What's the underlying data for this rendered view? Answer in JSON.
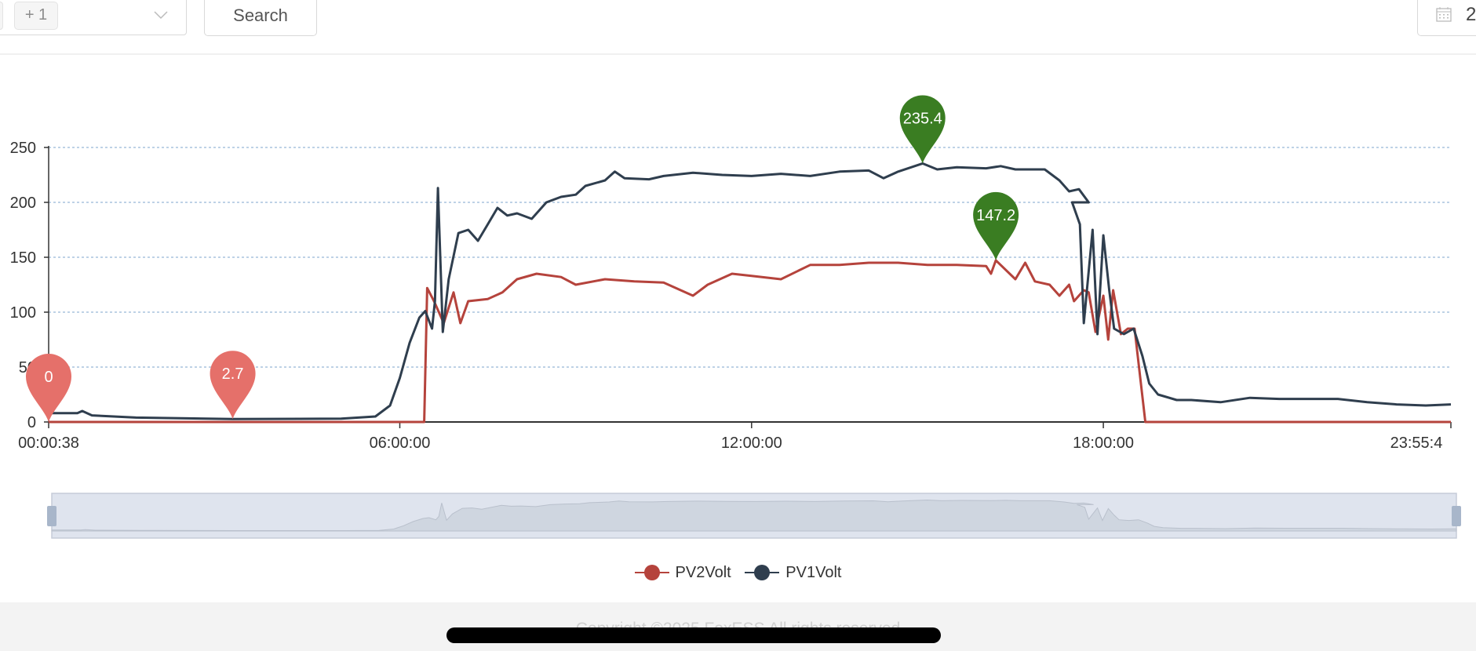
{
  "toolbar": {
    "tag_label": "+ 1",
    "search_label": "Search",
    "date_value": "2",
    "calendar_icon": "calendar-icon",
    "chevron_icon": "chevron-down-icon"
  },
  "chart_data": {
    "type": "line",
    "xlabel": "",
    "ylabel": "",
    "ylim": [
      0,
      250
    ],
    "yticks": [
      "0",
      "50",
      "100",
      "150",
      "200",
      "250"
    ],
    "xticks": [
      "00:00:38",
      "06:00:00",
      "12:00:00",
      "18:00:00",
      "23:55:4"
    ],
    "xrange": [
      "00:00:38",
      "23:55:40"
    ],
    "grid": true,
    "legend_position": "bottom",
    "colors": {
      "PV2Volt": "#b5433c",
      "PV1Volt": "#2f3e4e",
      "min_marker": "#e5706a",
      "max_marker": "#3a7d22",
      "grid": "#a9c4dd"
    },
    "series": [
      {
        "name": "PV2Volt",
        "color": "#b5433c",
        "x": [
          "00:00:38",
          "06:25",
          "06:28",
          "06:35",
          "06:45",
          "06:55",
          "07:02",
          "07:10",
          "07:30",
          "07:45",
          "08:00",
          "08:20",
          "08:45",
          "09:00",
          "09:30",
          "10:00",
          "10:30",
          "11:00",
          "11:15",
          "11:40",
          "12:00",
          "12:30",
          "13:00",
          "13:30",
          "14:00",
          "14:30",
          "15:00",
          "15:30",
          "16:00",
          "16:05",
          "16:10",
          "16:30",
          "16:40",
          "16:50",
          "17:05",
          "17:15",
          "17:25",
          "17:30",
          "17:40",
          "17:45",
          "17:52",
          "18:00",
          "18:05",
          "18:10",
          "18:18",
          "18:25",
          "18:32",
          "18:43",
          "23:55:40"
        ],
        "values": [
          0,
          0,
          122,
          110,
          90,
          118,
          90,
          110,
          112,
          118,
          130,
          135,
          132,
          125,
          130,
          128,
          127,
          115,
          125,
          135,
          133,
          130,
          143,
          143,
          145,
          145,
          143,
          143,
          142,
          135,
          147.2,
          130,
          145,
          128,
          125,
          115,
          125,
          110,
          120,
          118,
          82,
          115,
          75,
          120,
          80,
          85,
          85,
          0,
          0
        ]
      },
      {
        "name": "PV1Volt",
        "color": "#2f3e4e",
        "x": [
          "00:00:38",
          "00:30",
          "00:35",
          "00:45",
          "01:30",
          "03:09",
          "05:00",
          "05:35",
          "05:50",
          "06:00",
          "06:10",
          "06:20",
          "06:26",
          "06:33",
          "06:36",
          "06:39",
          "06:44",
          "06:50",
          "07:00",
          "07:10",
          "07:20",
          "07:30",
          "07:40",
          "07:50",
          "08:00",
          "08:15",
          "08:30",
          "08:45",
          "09:00",
          "09:10",
          "09:30",
          "09:40",
          "09:50",
          "10:15",
          "10:30",
          "11:00",
          "11:30",
          "12:00",
          "12:30",
          "13:00",
          "13:30",
          "14:00",
          "14:15",
          "14:30",
          "14:55",
          "15:10",
          "15:30",
          "16:00",
          "16:15",
          "16:30",
          "17:00",
          "17:15",
          "17:25",
          "17:35",
          "17:45",
          "17:28",
          "17:36",
          "17:40",
          "17:49",
          "17:54",
          "18:00",
          "18:06",
          "18:11",
          "18:21",
          "18:31",
          "18:40",
          "18:47",
          "18:56",
          "19:15",
          "19:30",
          "20:00",
          "20:30",
          "21:00",
          "21:30",
          "22:00",
          "22:30",
          "23:00",
          "23:30",
          "23:55:40"
        ],
        "values": [
          8,
          8,
          10,
          6,
          4,
          2.7,
          3,
          5,
          15,
          40,
          72,
          95,
          101,
          85,
          110,
          213,
          82,
          130,
          172,
          175,
          165,
          180,
          195,
          188,
          190,
          185,
          200,
          205,
          207,
          215,
          220,
          228,
          222,
          221,
          224,
          227,
          225,
          224,
          226,
          224,
          228,
          229,
          222,
          228,
          235.4,
          230,
          232,
          231,
          233,
          230,
          230,
          220,
          210,
          212,
          200,
          200,
          180,
          90,
          175,
          80,
          170,
          120,
          85,
          80,
          85,
          60,
          35,
          25,
          20,
          20,
          18,
          22,
          21,
          21,
          21,
          18,
          16,
          15,
          16
        ]
      }
    ],
    "markers": [
      {
        "series": "PV2Volt",
        "type": "min",
        "x": "00:00:38",
        "value": 0,
        "label": "0"
      },
      {
        "series": "PV1Volt",
        "type": "min",
        "x": "03:09",
        "value": 2.7,
        "label": "2.7"
      },
      {
        "series": "PV1Volt",
        "type": "max",
        "x": "14:55",
        "value": 235.4,
        "label": "235.4"
      },
      {
        "series": "PV2Volt",
        "type": "max",
        "x": "16:10",
        "value": 147.2,
        "label": "147.2"
      }
    ],
    "datazoom": {
      "start_percent": 0,
      "end_percent": 100
    }
  },
  "legend": [
    {
      "label": "PV2Volt",
      "color": "#b5433c"
    },
    {
      "label": "PV1Volt",
      "color": "#2f3e4e"
    }
  ],
  "footer": {
    "copyright": "Copyright ©2025 FoxESS All rights reserved"
  }
}
